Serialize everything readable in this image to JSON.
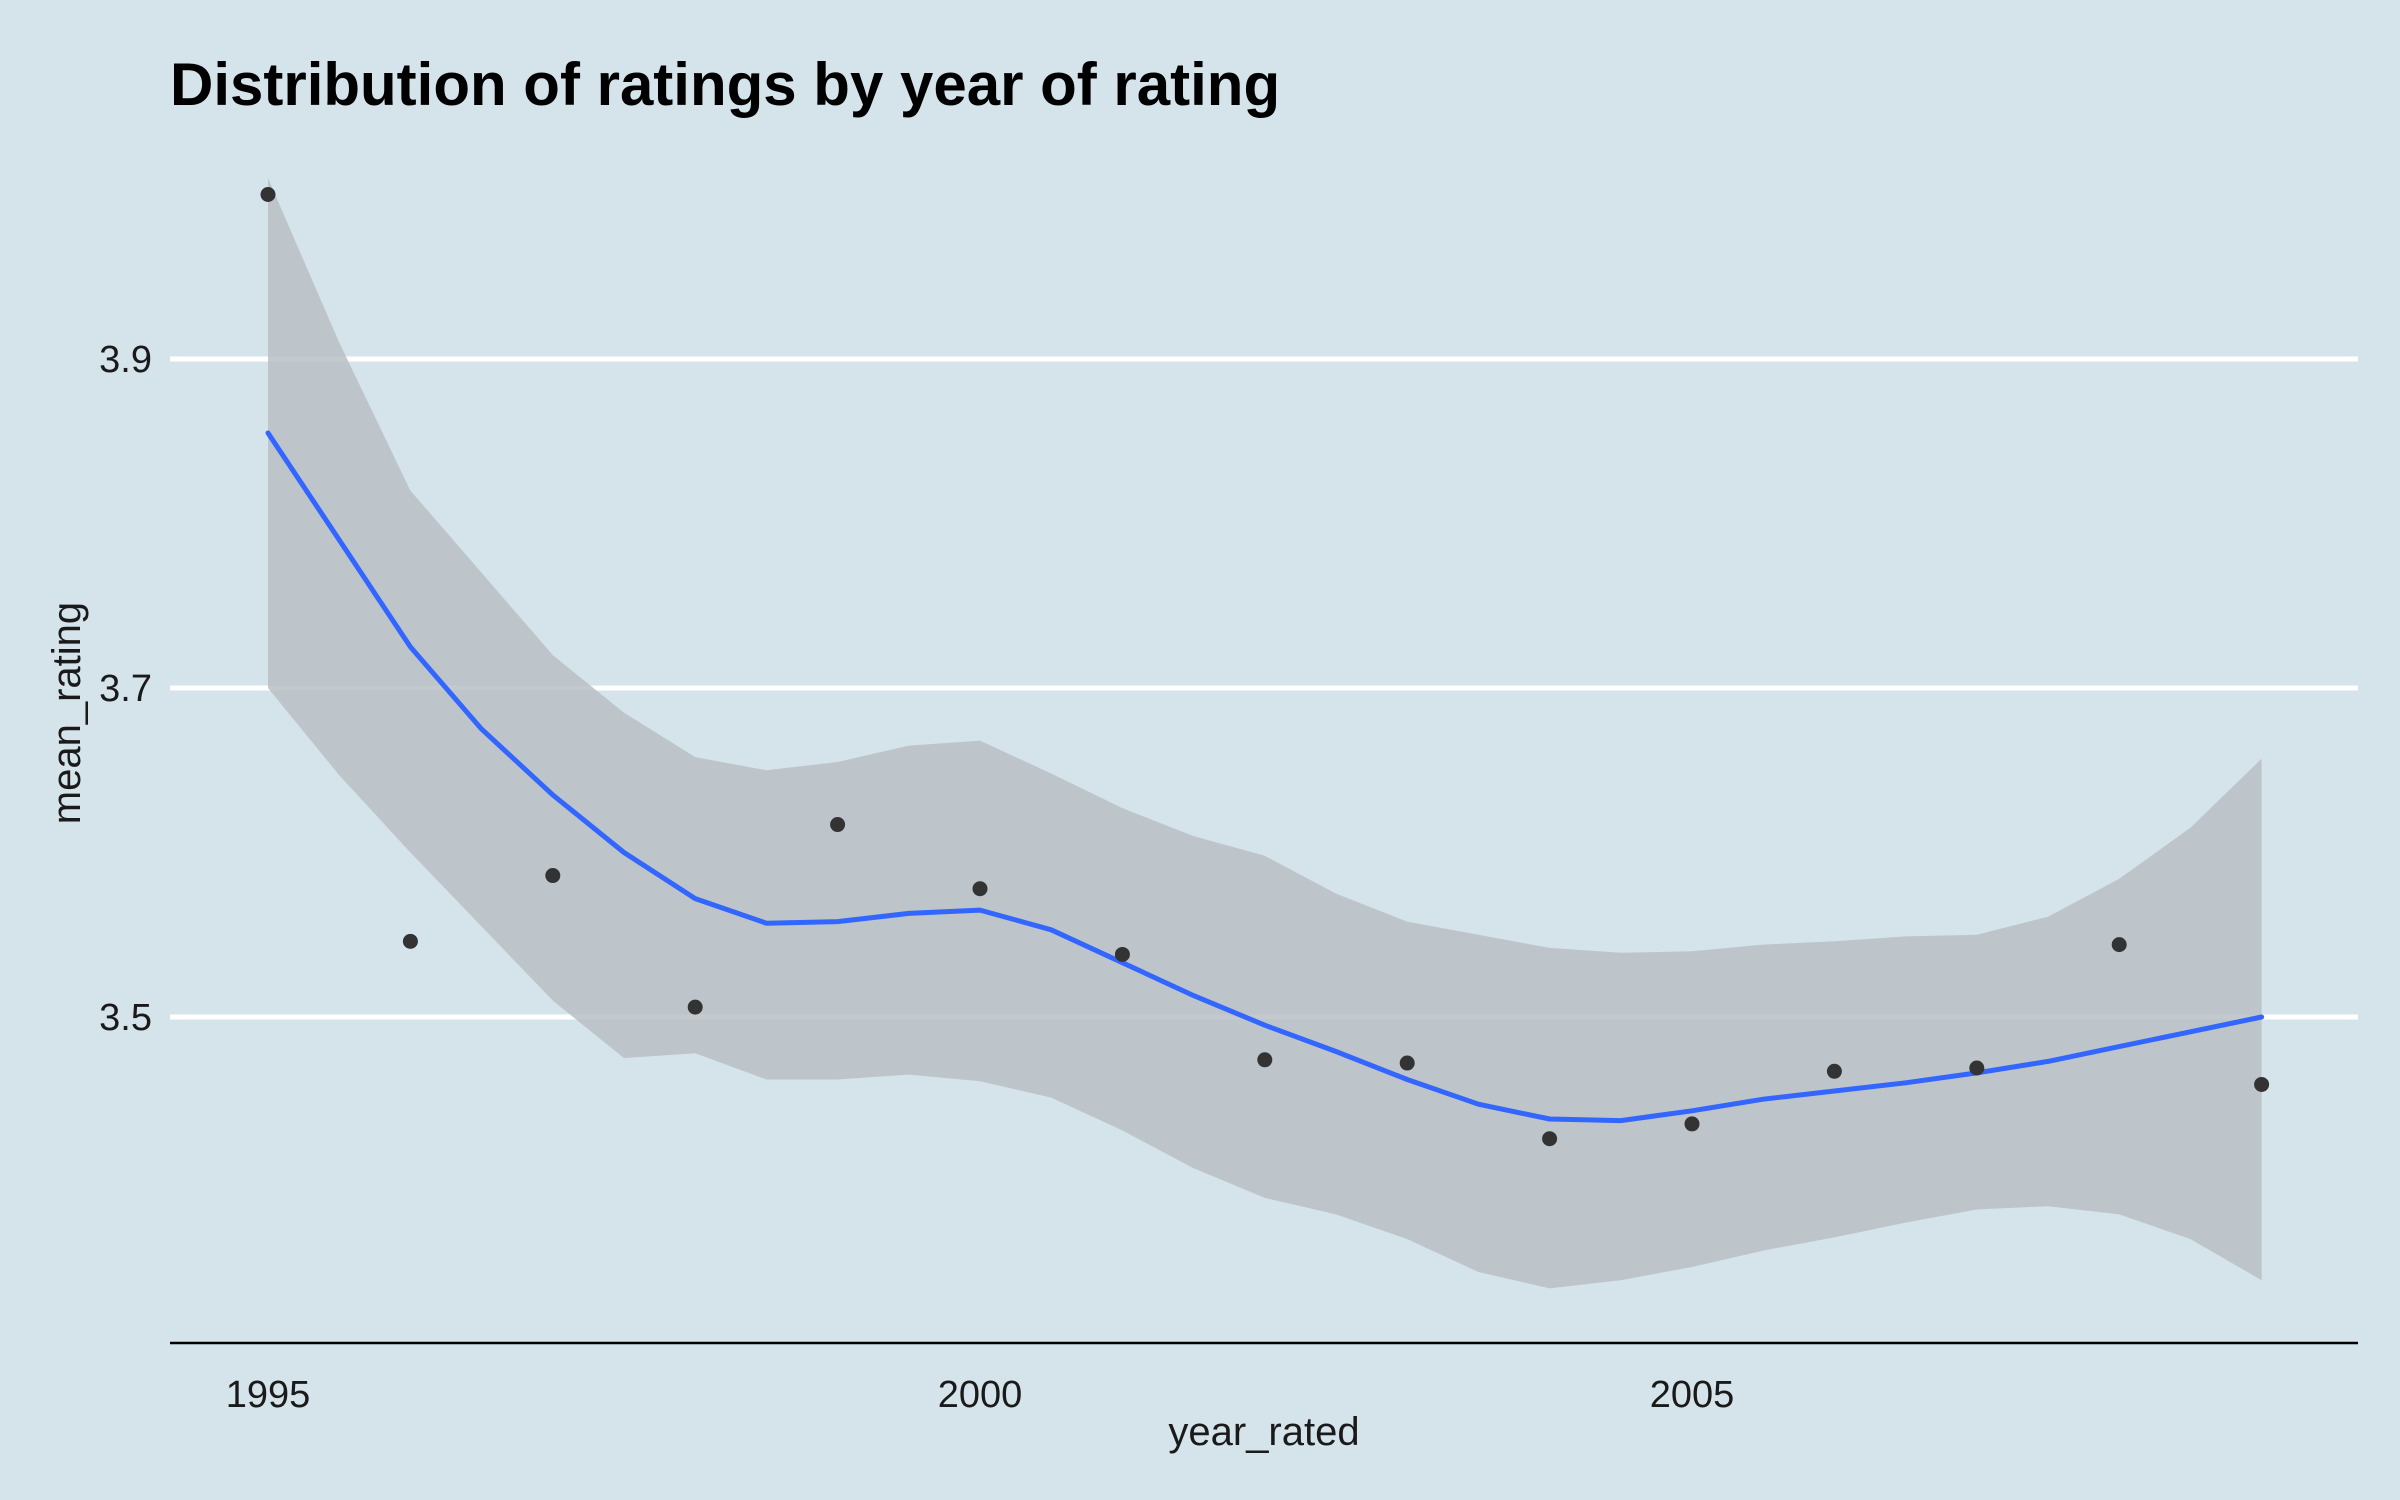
{
  "chart_data": {
    "type": "scatter",
    "title": "Distribution of ratings by year of rating",
    "xlabel": "year_rated",
    "ylabel": "mean_rating",
    "xlim": [
      1994.3,
      2009.7
    ],
    "ylim": [
      3.3,
      4.01
    ],
    "x_ticks": [
      1995,
      2000,
      2005
    ],
    "y_ticks": [
      3.5,
      3.7,
      3.9
    ],
    "x_tick_labels": [
      "1995",
      "2000",
      "2005"
    ],
    "y_tick_labels": [
      "3.5",
      "3.7",
      "3.9"
    ],
    "grid": "horizontal major lines only",
    "legend": "none",
    "points": [
      {
        "x": 1995,
        "y": 4.0
      },
      {
        "x": 1996,
        "y": 3.546
      },
      {
        "x": 1997,
        "y": 3.586
      },
      {
        "x": 1998,
        "y": 3.506
      },
      {
        "x": 1999,
        "y": 3.617
      },
      {
        "x": 2000,
        "y": 3.578
      },
      {
        "x": 2001,
        "y": 3.538
      },
      {
        "x": 2002,
        "y": 3.474
      },
      {
        "x": 2003,
        "y": 3.472
      },
      {
        "x": 2004,
        "y": 3.426
      },
      {
        "x": 2005,
        "y": 3.435
      },
      {
        "x": 2006,
        "y": 3.467
      },
      {
        "x": 2007,
        "y": 3.469
      },
      {
        "x": 2008,
        "y": 3.544
      },
      {
        "x": 2009,
        "y": 3.459
      }
    ],
    "smooth": {
      "x": [
        1995,
        1995.5,
        1996,
        1996.5,
        1997,
        1997.5,
        1998,
        1998.5,
        1999,
        1999.5,
        2000,
        2000.5,
        2001,
        2001.5,
        2002,
        2002.5,
        2003,
        2003.5,
        2004,
        2004.5,
        2005,
        2005.5,
        2006,
        2006.5,
        2007,
        2007.5,
        2008,
        2008.5,
        2009
      ],
      "y": [
        3.855,
        3.79,
        3.725,
        3.675,
        3.635,
        3.6,
        3.572,
        3.557,
        3.558,
        3.563,
        3.565,
        3.553,
        3.533,
        3.513,
        3.495,
        3.479,
        3.462,
        3.447,
        3.438,
        3.437,
        3.443,
        3.45,
        3.455,
        3.46,
        3.466,
        3.473,
        3.482,
        3.491,
        3.5
      ],
      "lower": [
        3.7,
        3.647,
        3.6,
        3.555,
        3.51,
        3.475,
        3.478,
        3.462,
        3.462,
        3.465,
        3.461,
        3.451,
        3.431,
        3.408,
        3.39,
        3.38,
        3.365,
        3.345,
        3.335,
        3.34,
        3.348,
        3.358,
        3.366,
        3.375,
        3.383,
        3.385,
        3.38,
        3.365,
        3.34
      ],
      "upper": [
        4.01,
        3.91,
        3.82,
        3.77,
        3.72,
        3.685,
        3.658,
        3.65,
        3.655,
        3.665,
        3.668,
        3.648,
        3.627,
        3.61,
        3.598,
        3.575,
        3.558,
        3.55,
        3.542,
        3.539,
        3.54,
        3.544,
        3.546,
        3.549,
        3.55,
        3.561,
        3.584,
        3.615,
        3.657
      ]
    },
    "colors": {
      "background": "#d5e4eb",
      "grid": "#ffffff",
      "points": "#333333",
      "line": "#3366ff",
      "ribbon": "#b9bfc4",
      "axis": "#000000"
    }
  }
}
